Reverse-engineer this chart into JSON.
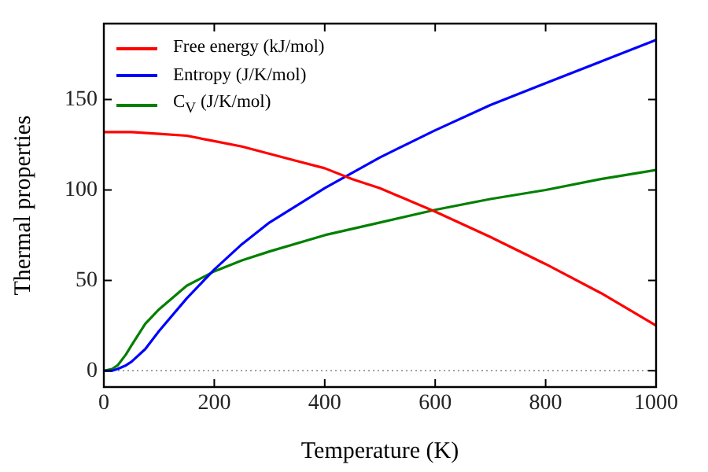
{
  "chart_data": {
    "type": "line",
    "xlabel": "Temperature (K)",
    "ylabel": "Thermal properties",
    "xlim": [
      0,
      1000
    ],
    "xticks": [
      0,
      200,
      400,
      600,
      800,
      1000
    ],
    "ylim": [
      -9,
      192
    ],
    "yticks": [
      0,
      50,
      100,
      150
    ],
    "grid": false,
    "legend": "top left",
    "marker": "none",
    "line_style": "solid",
    "ref_lines": [
      {
        "axis": "y",
        "value": 0,
        "color": "#808080",
        "line_style": "dotted"
      }
    ],
    "series": [
      {
        "name": "Free energy (kJ/mol)",
        "color": "#ff0000",
        "x": [
          0,
          50,
          100,
          150,
          200,
          250,
          300,
          350,
          400,
          450,
          500,
          600,
          700,
          800,
          900,
          1000
        ],
        "values": [
          132,
          132,
          131,
          130,
          127,
          124,
          120,
          116,
          112,
          106,
          101,
          88,
          74,
          59,
          43,
          25
        ]
      },
      {
        "name": "Entropy (J/K/mol)",
        "color": "#0000ff",
        "x": [
          0,
          15,
          25,
          40,
          50,
          75,
          100,
          150,
          200,
          250,
          300,
          400,
          500,
          600,
          700,
          800,
          900,
          1000
        ],
        "values": [
          0,
          0,
          1,
          3,
          5,
          12,
          22,
          40,
          56,
          70,
          82,
          101,
          118,
          133,
          147,
          159,
          171,
          183
        ]
      },
      {
        "name": "C$_{V}$ (J/K/mol)",
        "color": "#008000",
        "x": [
          0,
          15,
          25,
          40,
          50,
          75,
          100,
          150,
          200,
          250,
          300,
          400,
          500,
          600,
          700,
          800,
          900,
          1000
        ],
        "values": [
          0,
          1,
          3,
          9,
          14,
          26,
          34,
          47,
          55,
          61,
          66,
          75,
          82,
          89,
          95,
          100,
          106,
          111
        ]
      }
    ]
  }
}
